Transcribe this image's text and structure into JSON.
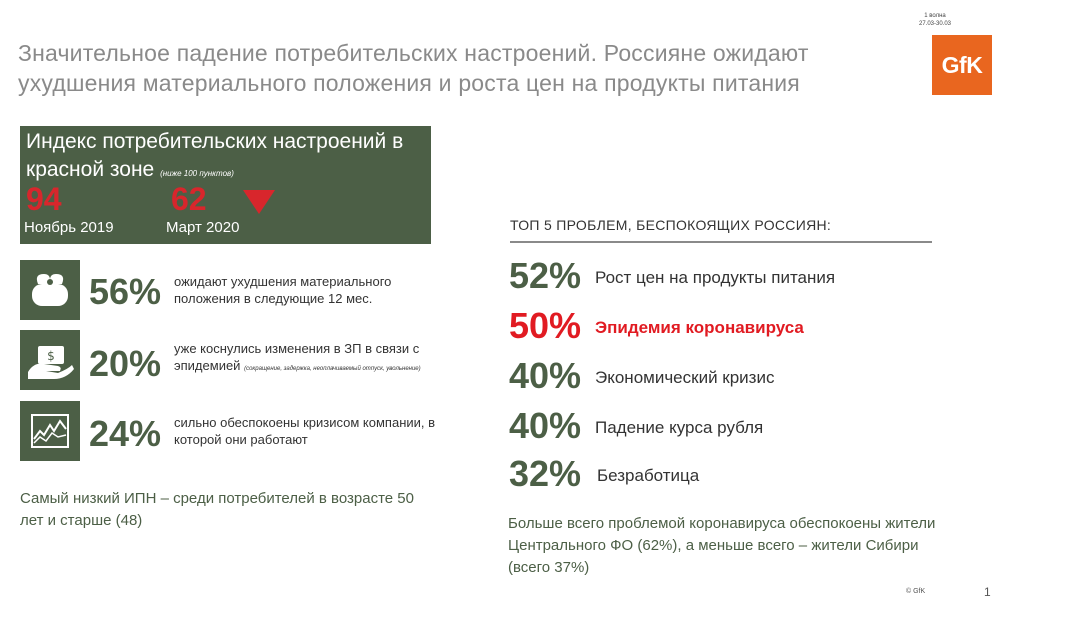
{
  "header": {
    "title": "Значительное падение потребительских настроений. Россияне ожидают ухудшения материального положения и роста цен на продукты питания",
    "wave_line1": "1 волна",
    "wave_line2": "27.03-30.03",
    "logo_text": "GfK"
  },
  "index_box": {
    "title_main": "Индекс потребительских настроений в красной зоне",
    "title_note": "(ниже 100 пунктов)",
    "nov_value": "94",
    "nov_label": "Ноябрь 2019",
    "mar_value": "62",
    "mar_label": "Март 2020",
    "arrow_icon": "down-triangle-icon"
  },
  "stats": [
    {
      "icon": "purse-icon",
      "pct": "56%",
      "desc": "ожидают ухудшения материального положения в следующие 12 мес.",
      "note": ""
    },
    {
      "icon": "money-hand-icon",
      "pct": "20%",
      "desc": "уже коснулись изменения в ЗП в связи с эпидемией",
      "note": "(сокращение, задержка, неоплачиваемый отпуск, увольнение)"
    },
    {
      "icon": "chart-decline-icon",
      "pct": "24%",
      "desc": "сильно обеспокоены кризисом компании, в которой они работают",
      "note": ""
    }
  ],
  "footnote_left": "Самый низкий ИПН – среди потребителей в возрасте 50 лет и старше (48)",
  "top5": {
    "heading": "ТОП 5 ПРОБЛЕМ, БЕСПОКОЯЩИХ РОССИЯН:",
    "items": [
      {
        "pct": "52%",
        "label": "Рост цен на продукты питания"
      },
      {
        "pct": "50%",
        "label": "Эпидемия коронавируса"
      },
      {
        "pct": "40%",
        "label": "Экономический кризис"
      },
      {
        "pct": "40%",
        "label": "Падение курса рубля"
      },
      {
        "pct": "32%",
        "label": "Безработица"
      }
    ]
  },
  "footnote_right": "Больше всего проблемой коронавируса обеспокоены жители Центрального ФО (62%), а меньше всего – жители Сибири (всего 37%)",
  "footer": {
    "copyright": "© GfK",
    "page": "1"
  },
  "colors": {
    "green": "#4c5f46",
    "red": "#e11b22",
    "orange": "#e9661f",
    "grey_title": "#8a8a8a"
  }
}
